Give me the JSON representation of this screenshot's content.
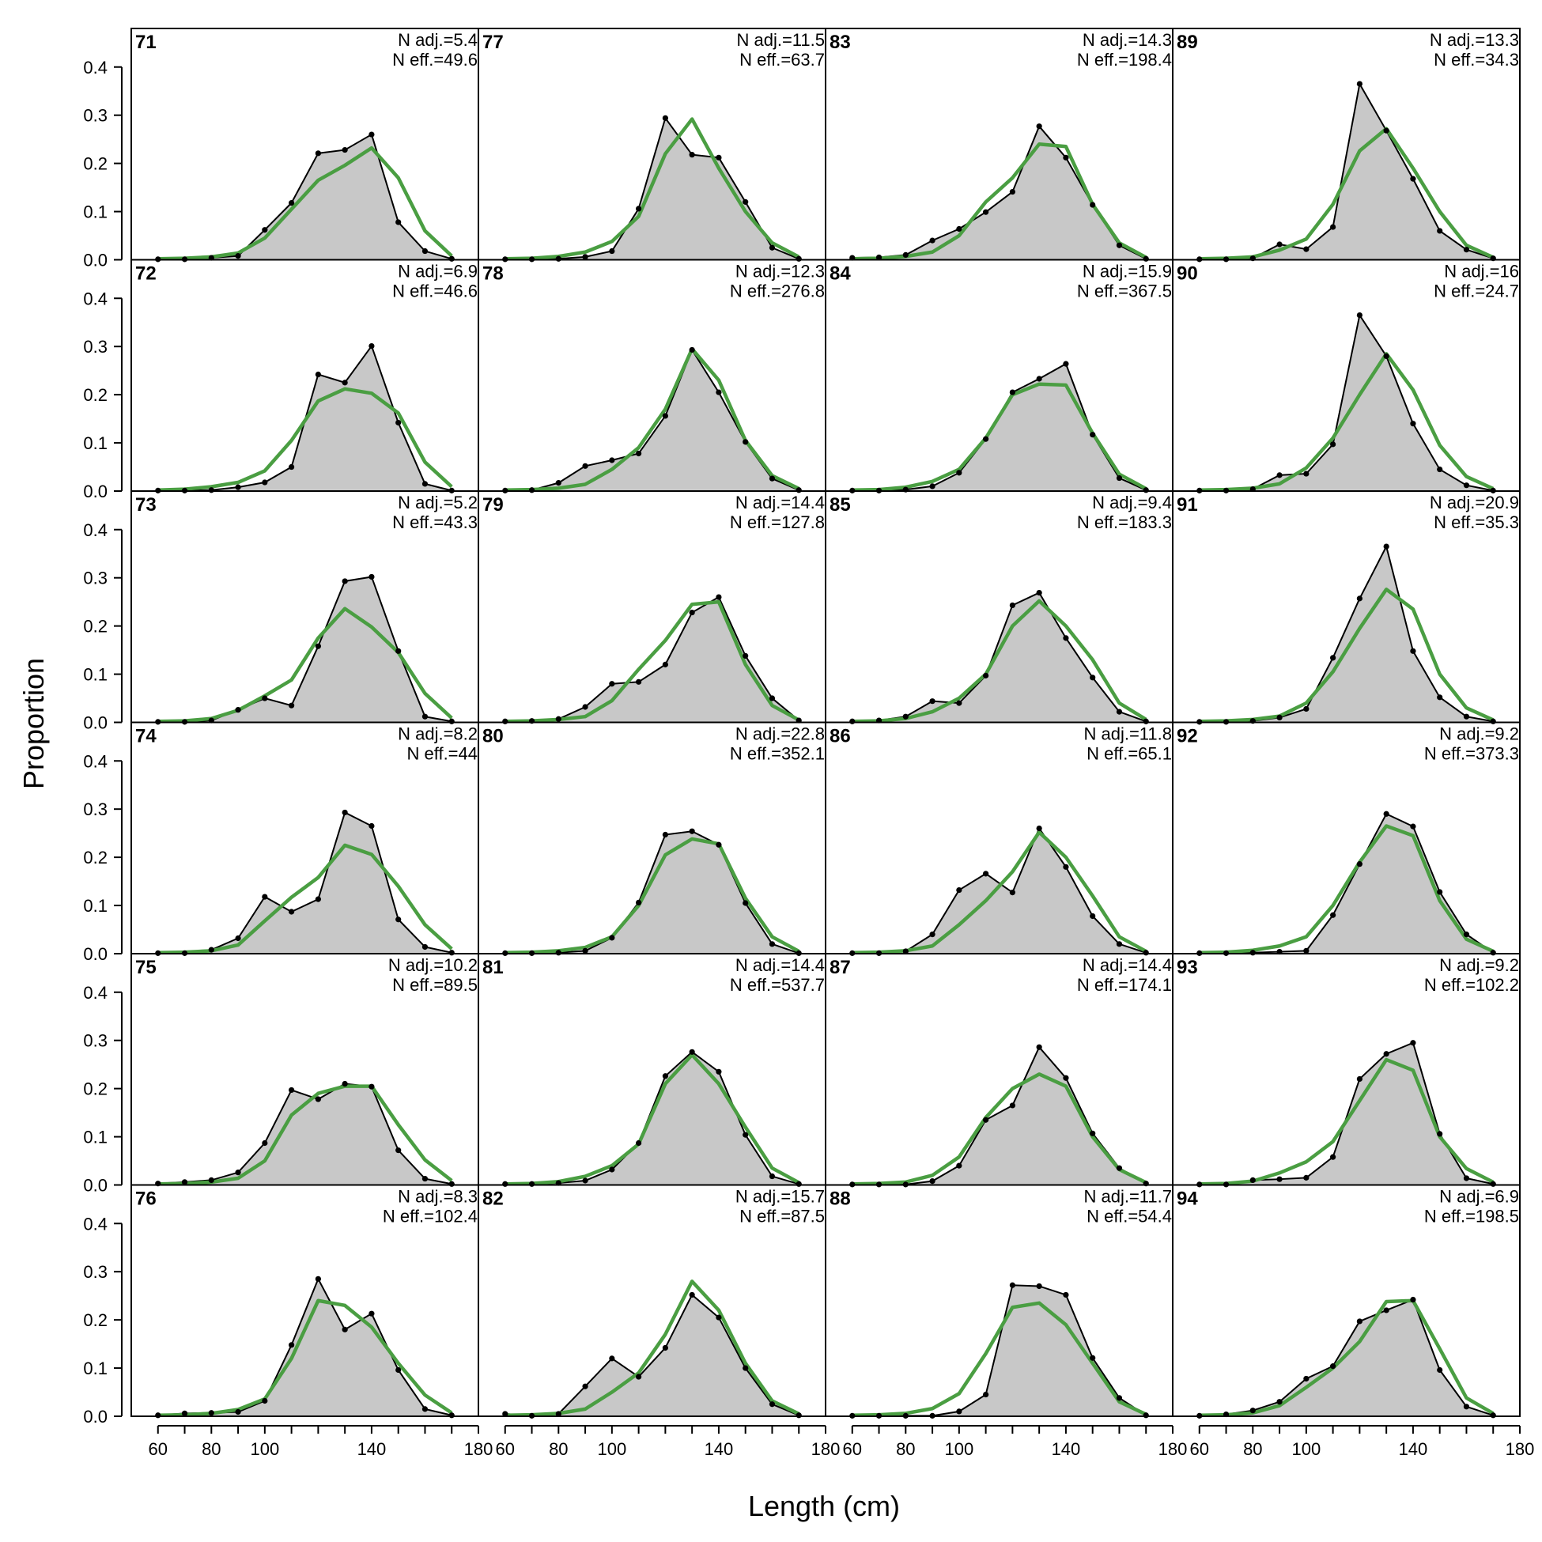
{
  "chart_data": {
    "type": "area",
    "xlabel": "Length (cm)",
    "ylabel": "Proportion",
    "xlim": [
      50,
      180
    ],
    "ylim": [
      0,
      0.48
    ],
    "x_ticks": [
      60,
      80,
      100,
      140,
      180
    ],
    "y_ticks": [
      0.0,
      0.1,
      0.2,
      0.3,
      0.4
    ],
    "y_tick_labels": [
      "0.0",
      "0.1",
      "0.2",
      "0.3",
      "0.4"
    ],
    "x": [
      60,
      70,
      80,
      90,
      100,
      110,
      120,
      130,
      140,
      150,
      160,
      170
    ],
    "grid": false,
    "colors": {
      "observed_fill": "#c8c8c8",
      "observed_line": "#000000",
      "expected_line": "#4a9e42",
      "baseline": "#bdbdbd"
    },
    "panels": [
      {
        "label": "71",
        "n_adj": "N adj.=5.4",
        "n_eff": "N eff.=49.6",
        "observed": [
          0.001,
          0.001,
          0.004,
          0.008,
          0.062,
          0.118,
          0.221,
          0.228,
          0.26,
          0.078,
          0.018,
          0.002
        ],
        "expected": [
          0.002,
          0.003,
          0.006,
          0.014,
          0.045,
          0.105,
          0.165,
          0.196,
          0.232,
          0.17,
          0.06,
          0.008
        ]
      },
      {
        "label": "72",
        "n_adj": "N adj.=6.9",
        "n_eff": "N eff.=46.6",
        "observed": [
          0.001,
          0.001,
          0.002,
          0.008,
          0.018,
          0.05,
          0.242,
          0.225,
          0.301,
          0.142,
          0.015,
          0.001
        ],
        "expected": [
          0.002,
          0.004,
          0.009,
          0.018,
          0.042,
          0.105,
          0.187,
          0.212,
          0.203,
          0.162,
          0.06,
          0.009
        ]
      },
      {
        "label": "73",
        "n_adj": "N adj.=5.2",
        "n_eff": "N eff.=43.3",
        "observed": [
          0.001,
          0.001,
          0.004,
          0.026,
          0.05,
          0.035,
          0.158,
          0.293,
          0.302,
          0.148,
          0.012,
          0.002
        ],
        "expected": [
          0.002,
          0.003,
          0.008,
          0.025,
          0.055,
          0.088,
          0.175,
          0.236,
          0.198,
          0.145,
          0.06,
          0.009
        ]
      },
      {
        "label": "74",
        "n_adj": "N adj.=8.2",
        "n_eff": "N eff.=44",
        "observed": [
          0.001,
          0.001,
          0.008,
          0.032,
          0.118,
          0.087,
          0.113,
          0.293,
          0.265,
          0.071,
          0.014,
          0.002
        ],
        "expected": [
          0.002,
          0.003,
          0.006,
          0.018,
          0.068,
          0.117,
          0.158,
          0.225,
          0.206,
          0.14,
          0.06,
          0.01
        ]
      },
      {
        "label": "75",
        "n_adj": "N adj.=10.2",
        "n_eff": "N eff.=89.5",
        "observed": [
          0.003,
          0.006,
          0.01,
          0.026,
          0.087,
          0.197,
          0.178,
          0.21,
          0.204,
          0.072,
          0.013,
          0.002
        ],
        "expected": [
          0.002,
          0.003,
          0.006,
          0.014,
          0.05,
          0.145,
          0.19,
          0.205,
          0.205,
          0.125,
          0.052,
          0.009
        ]
      },
      {
        "label": "76",
        "n_adj": "N adj.=8.3",
        "n_eff": "N eff.=102.4",
        "observed": [
          0.002,
          0.006,
          0.007,
          0.009,
          0.032,
          0.148,
          0.285,
          0.18,
          0.213,
          0.096,
          0.015,
          0.002
        ],
        "expected": [
          0.002,
          0.003,
          0.006,
          0.014,
          0.036,
          0.12,
          0.24,
          0.23,
          0.185,
          0.11,
          0.044,
          0.007
        ]
      },
      {
        "label": "77",
        "n_adj": "N adj.=11.5",
        "n_eff": "N eff.=63.7",
        "observed": [
          0.001,
          0.001,
          0.002,
          0.006,
          0.018,
          0.106,
          0.294,
          0.218,
          0.212,
          0.12,
          0.025,
          0.002
        ],
        "expected": [
          0.002,
          0.003,
          0.007,
          0.016,
          0.038,
          0.09,
          0.22,
          0.292,
          0.19,
          0.1,
          0.035,
          0.006
        ]
      },
      {
        "label": "78",
        "n_adj": "N adj.=12.3",
        "n_eff": "N eff.=276.8",
        "observed": [
          0.001,
          0.002,
          0.017,
          0.052,
          0.064,
          0.078,
          0.156,
          0.293,
          0.205,
          0.102,
          0.026,
          0.002
        ],
        "expected": [
          0.002,
          0.003,
          0.006,
          0.014,
          0.045,
          0.09,
          0.17,
          0.295,
          0.23,
          0.105,
          0.032,
          0.005
        ]
      },
      {
        "label": "79",
        "n_adj": "N adj.=14.4",
        "n_eff": "N eff.=127.8",
        "observed": [
          0.002,
          0.003,
          0.007,
          0.032,
          0.08,
          0.084,
          0.12,
          0.228,
          0.26,
          0.138,
          0.05,
          0.004
        ],
        "expected": [
          0.002,
          0.003,
          0.006,
          0.012,
          0.045,
          0.11,
          0.17,
          0.245,
          0.25,
          0.12,
          0.035,
          0.005
        ]
      },
      {
        "label": "80",
        "n_adj": "N adj.=22.8",
        "n_eff": "N eff.=352.1",
        "observed": [
          0.001,
          0.001,
          0.002,
          0.006,
          0.033,
          0.106,
          0.247,
          0.254,
          0.226,
          0.105,
          0.02,
          0.001
        ],
        "expected": [
          0.002,
          0.003,
          0.006,
          0.013,
          0.035,
          0.1,
          0.205,
          0.238,
          0.228,
          0.115,
          0.035,
          0.005
        ]
      },
      {
        "label": "81",
        "n_adj": "N adj.=14.4",
        "n_eff": "N eff.=537.7",
        "observed": [
          0.002,
          0.002,
          0.004,
          0.009,
          0.032,
          0.087,
          0.226,
          0.276,
          0.235,
          0.104,
          0.018,
          0.002
        ],
        "expected": [
          0.002,
          0.003,
          0.007,
          0.018,
          0.04,
          0.085,
          0.21,
          0.27,
          0.21,
          0.12,
          0.035,
          0.005
        ]
      },
      {
        "label": "82",
        "n_adj": "N adj.=15.7",
        "n_eff": "N eff.=87.5",
        "observed": [
          0.005,
          0.001,
          0.005,
          0.062,
          0.12,
          0.082,
          0.142,
          0.252,
          0.205,
          0.1,
          0.025,
          0.002
        ],
        "expected": [
          0.002,
          0.003,
          0.006,
          0.015,
          0.05,
          0.09,
          0.17,
          0.28,
          0.22,
          0.11,
          0.032,
          0.005
        ]
      },
      {
        "label": "83",
        "n_adj": "N adj.=14.3",
        "n_eff": "N eff.=198.4",
        "observed": [
          0.004,
          0.005,
          0.01,
          0.04,
          0.064,
          0.099,
          0.141,
          0.277,
          0.212,
          0.114,
          0.03,
          0.002
        ],
        "expected": [
          0.002,
          0.003,
          0.007,
          0.016,
          0.05,
          0.12,
          0.17,
          0.24,
          0.235,
          0.115,
          0.035,
          0.005
        ]
      },
      {
        "label": "84",
        "n_adj": "N adj.=15.9",
        "n_eff": "N eff.=367.5",
        "observed": [
          0.001,
          0.001,
          0.003,
          0.01,
          0.038,
          0.108,
          0.205,
          0.233,
          0.264,
          0.117,
          0.027,
          0.002
        ],
        "expected": [
          0.002,
          0.003,
          0.008,
          0.02,
          0.045,
          0.11,
          0.2,
          0.222,
          0.22,
          0.12,
          0.035,
          0.005
        ]
      },
      {
        "label": "85",
        "n_adj": "N adj.=9.4",
        "n_eff": "N eff.=183.3",
        "observed": [
          0.002,
          0.004,
          0.012,
          0.044,
          0.04,
          0.097,
          0.243,
          0.269,
          0.175,
          0.093,
          0.022,
          0.002
        ],
        "expected": [
          0.002,
          0.003,
          0.008,
          0.022,
          0.05,
          0.1,
          0.2,
          0.252,
          0.2,
          0.13,
          0.04,
          0.006
        ]
      },
      {
        "label": "86",
        "n_adj": "N adj.=11.8",
        "n_eff": "N eff.=65.1",
        "observed": [
          0.001,
          0.001,
          0.005,
          0.04,
          0.132,
          0.166,
          0.127,
          0.26,
          0.18,
          0.078,
          0.02,
          0.002
        ],
        "expected": [
          0.002,
          0.003,
          0.006,
          0.016,
          0.06,
          0.11,
          0.17,
          0.252,
          0.2,
          0.12,
          0.035,
          0.005
        ]
      },
      {
        "label": "87",
        "n_adj": "N adj.=14.4",
        "n_eff": "N eff.=174.1",
        "observed": [
          0.001,
          0.001,
          0.001,
          0.008,
          0.04,
          0.135,
          0.165,
          0.286,
          0.222,
          0.107,
          0.035,
          0.003
        ],
        "expected": [
          0.002,
          0.003,
          0.006,
          0.02,
          0.058,
          0.14,
          0.2,
          0.23,
          0.205,
          0.1,
          0.032,
          0.005
        ]
      },
      {
        "label": "88",
        "n_adj": "N adj.=11.7",
        "n_eff": "N eff.=54.4",
        "observed": [
          0.001,
          0.001,
          0.001,
          0.001,
          0.01,
          0.045,
          0.272,
          0.27,
          0.252,
          0.121,
          0.038,
          0.002
        ],
        "expected": [
          0.002,
          0.003,
          0.006,
          0.016,
          0.047,
          0.13,
          0.226,
          0.235,
          0.19,
          0.11,
          0.03,
          0.004
        ]
      },
      {
        "label": "89",
        "n_adj": "N adj.=13.3",
        "n_eff": "N eff.=34.3",
        "observed": [
          0.001,
          0.001,
          0.003,
          0.032,
          0.022,
          0.068,
          0.365,
          0.268,
          0.168,
          0.06,
          0.021,
          0.003
        ],
        "expected": [
          0.002,
          0.003,
          0.006,
          0.02,
          0.043,
          0.115,
          0.226,
          0.272,
          0.19,
          0.1,
          0.03,
          0.005
        ]
      },
      {
        "label": "90",
        "n_adj": "N adj.=16",
        "n_eff": "N eff.=24.7",
        "observed": [
          0.001,
          0.001,
          0.004,
          0.033,
          0.036,
          0.097,
          0.365,
          0.28,
          0.14,
          0.045,
          0.012,
          0.001
        ],
        "expected": [
          0.002,
          0.003,
          0.006,
          0.015,
          0.048,
          0.11,
          0.2,
          0.285,
          0.21,
          0.095,
          0.03,
          0.005
        ]
      },
      {
        "label": "91",
        "n_adj": "N adj.=20.9",
        "n_eff": "N eff.=35.3",
        "observed": [
          0.001,
          0.001,
          0.003,
          0.01,
          0.028,
          0.134,
          0.257,
          0.365,
          0.148,
          0.052,
          0.012,
          0.002
        ],
        "expected": [
          0.002,
          0.003,
          0.006,
          0.013,
          0.04,
          0.105,
          0.195,
          0.276,
          0.235,
          0.1,
          0.03,
          0.005
        ]
      },
      {
        "label": "92",
        "n_adj": "N adj.=9.2",
        "n_eff": "N eff.=373.3",
        "observed": [
          0.001,
          0.001,
          0.002,
          0.004,
          0.006,
          0.08,
          0.186,
          0.29,
          0.264,
          0.128,
          0.04,
          0.002
        ],
        "expected": [
          0.002,
          0.003,
          0.007,
          0.016,
          0.035,
          0.1,
          0.19,
          0.265,
          0.245,
          0.11,
          0.03,
          0.005
        ]
      },
      {
        "label": "93",
        "n_adj": "N adj.=9.2",
        "n_eff": "N eff.=102.2",
        "observed": [
          0.001,
          0.001,
          0.01,
          0.012,
          0.015,
          0.058,
          0.22,
          0.272,
          0.295,
          0.106,
          0.014,
          0.002
        ],
        "expected": [
          0.002,
          0.003,
          0.008,
          0.025,
          0.048,
          0.09,
          0.175,
          0.26,
          0.238,
          0.1,
          0.034,
          0.006
        ]
      },
      {
        "label": "94",
        "n_adj": "N adj.=6.9",
        "n_eff": "N eff.=198.5",
        "observed": [
          0.001,
          0.004,
          0.012,
          0.03,
          0.078,
          0.104,
          0.197,
          0.22,
          0.242,
          0.096,
          0.02,
          0.002
        ],
        "expected": [
          0.002,
          0.003,
          0.007,
          0.022,
          0.06,
          0.1,
          0.155,
          0.238,
          0.24,
          0.14,
          0.038,
          0.006
        ]
      }
    ]
  }
}
